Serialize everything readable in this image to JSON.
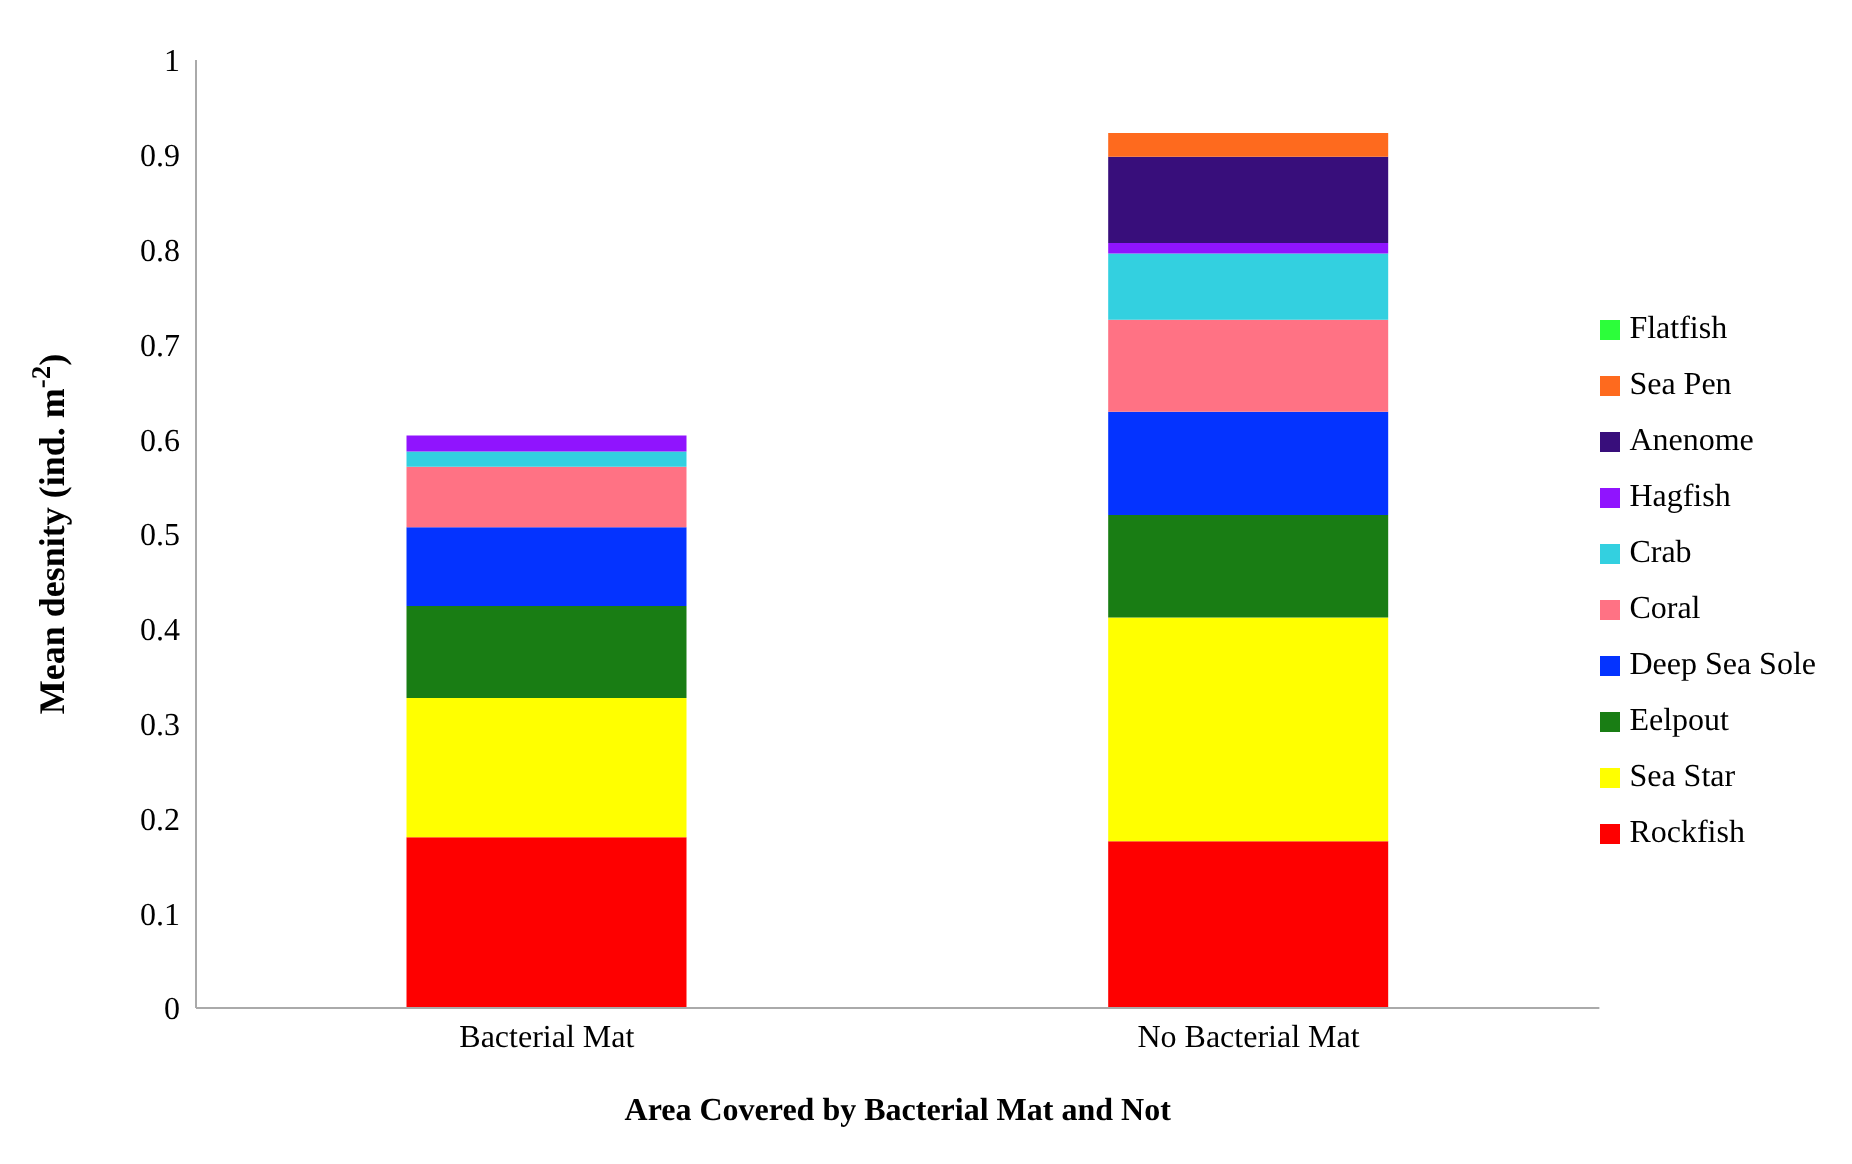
{
  "chart_data": {
    "type": "bar",
    "stacked": true,
    "xlabel": "Area Covered by Bacterial Mat and Not",
    "ylabel": "Mean desnity (ind. m$^{-2}$)",
    "categories": [
      "Bacterial Mat",
      "No Bacterial Mat"
    ],
    "ylim": [
      0,
      1
    ],
    "yticks": [
      0,
      0.1,
      0.2,
      0.3,
      0.4,
      0.5,
      0.6,
      0.7,
      0.8,
      0.9,
      1
    ],
    "grid": false,
    "legend": "right",
    "series": [
      {
        "name": "Rockfish",
        "color": "#fe0000",
        "values": [
          0.18,
          0.176
        ]
      },
      {
        "name": "Sea Star",
        "color": "#ffff00",
        "values": [
          0.147,
          0.236
        ]
      },
      {
        "name": "Eelpout",
        "color": "#197d14",
        "values": [
          0.097,
          0.108
        ]
      },
      {
        "name": "Deep Sea Sole",
        "color": "#0433ff",
        "values": [
          0.083,
          0.109
        ]
      },
      {
        "name": "Coral",
        "color": "#ff7284",
        "values": [
          0.064,
          0.097
        ]
      },
      {
        "name": "Crab",
        "color": "#33d0e0",
        "values": [
          0.016,
          0.07
        ]
      },
      {
        "name": "Hagfish",
        "color": "#9014fe",
        "values": [
          0.017,
          0.011
        ]
      },
      {
        "name": "Anenome",
        "color": "#380e7b",
        "values": [
          0,
          0.091
        ]
      },
      {
        "name": "Sea Pen",
        "color": "#fe6a1e",
        "values": [
          0,
          0.025
        ]
      },
      {
        "name": "Flatfish",
        "color": "#2cfe3a",
        "values": [
          0,
          0
        ]
      }
    ]
  }
}
